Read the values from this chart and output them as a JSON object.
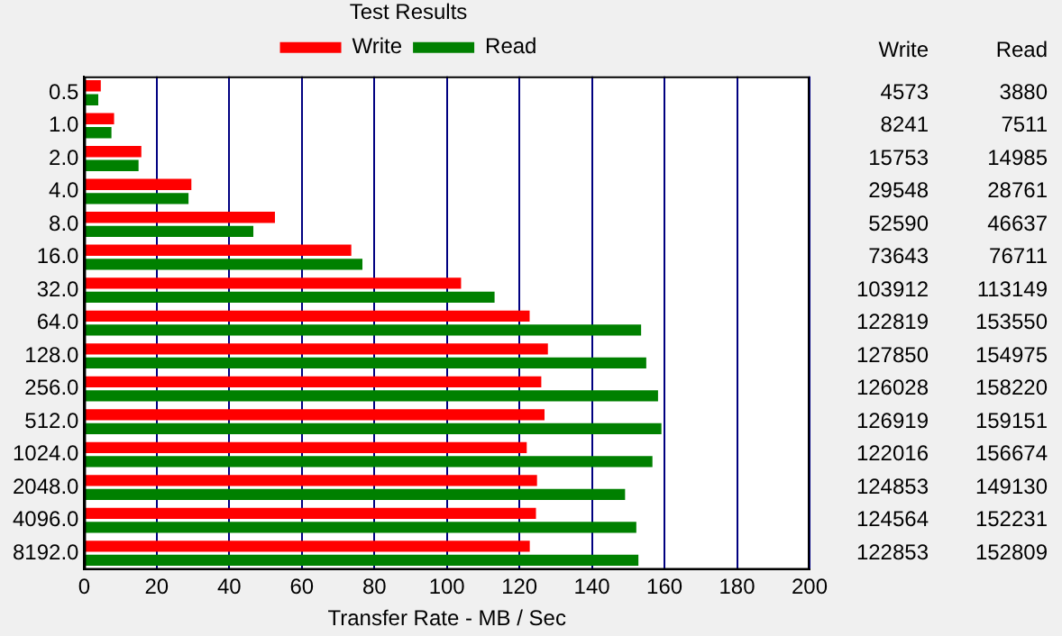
{
  "chart_data": {
    "type": "bar",
    "orientation": "horizontal",
    "title": "Test Results",
    "xlabel": "Transfer Rate - MB / Sec",
    "categories": [
      "0.5",
      "1.0",
      "2.0",
      "4.0",
      "8.0",
      "16.0",
      "32.0",
      "64.0",
      "128.0",
      "256.0",
      "512.0",
      "1024.0",
      "2048.0",
      "4096.0",
      "8192.0"
    ],
    "series": [
      {
        "name": "Write",
        "color": "#ff0000",
        "values": [
          4.573,
          8.241,
          15.753,
          29.548,
          52.59,
          73.643,
          103.912,
          122.819,
          127.85,
          126.028,
          126.919,
          122.016,
          124.853,
          124.564,
          122.853
        ]
      },
      {
        "name": "Read",
        "color": "#008000",
        "values": [
          3.88,
          7.511,
          14.985,
          28.761,
          46.637,
          76.711,
          113.149,
          153.55,
          154.975,
          158.22,
          159.151,
          156.674,
          149.13,
          152.231,
          152.809
        ]
      }
    ],
    "annotations": [
      "4573",
      "3880",
      "8241",
      "7511",
      "15753",
      "14985",
      "29548",
      "28761",
      "52590",
      "46637",
      "73643",
      "76711",
      "103912",
      "113149",
      "122819",
      "153550",
      "127850",
      "154975",
      "126028",
      "158220",
      "126919",
      "159151",
      "122016",
      "156674",
      "124853",
      "149130",
      "124564",
      "152231",
      "122853",
      "152809"
    ],
    "xlim": [
      0,
      200
    ],
    "xticks": [
      0,
      20,
      40,
      60,
      80,
      100,
      120,
      140,
      160,
      180,
      200
    ],
    "grid": "x",
    "legend": "top"
  }
}
